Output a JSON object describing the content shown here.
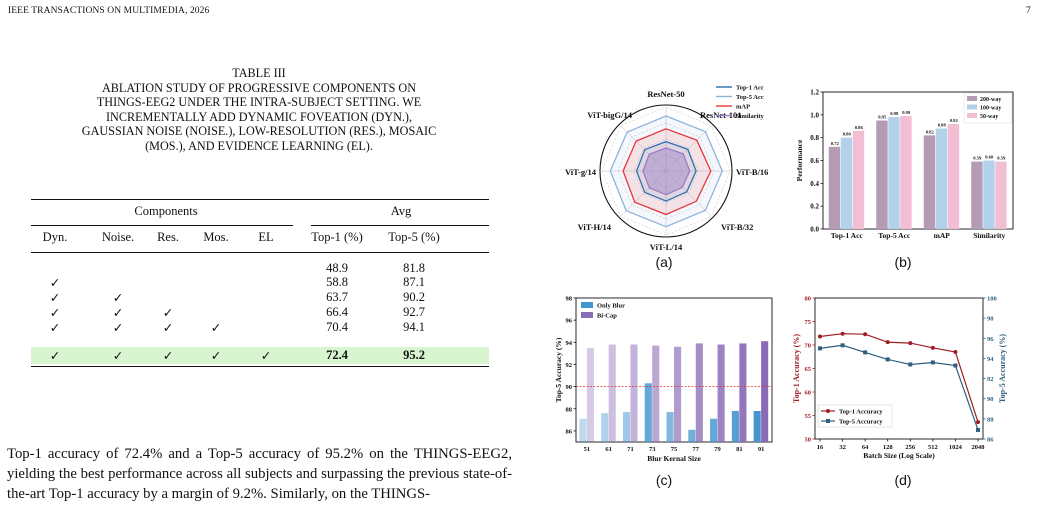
{
  "header": {
    "left": "IEEE TRANSACTIONS ON MULTIMEDIA, 2026",
    "right": "7"
  },
  "table": {
    "caption_label": "TABLE III",
    "caption_lines": [
      "Ablation study of progressive components on",
      "THINGS-EEG2 under the intra-subject setting. We",
      "incrementally add dynamic foveation (Dyn.),",
      "Gaussian noise (Noise.), low-resolution (Res.), mosaic",
      "(Mos.), and evidence learning (EL)."
    ],
    "group_headers": [
      "Components",
      "Avg"
    ],
    "columns": [
      "Dyn.",
      "Noise.",
      "Res.",
      "Mos.",
      "EL",
      "Top-1 (%)",
      "Top-5 (%)"
    ],
    "check_symbol": "✓",
    "rows": [
      {
        "checks": [
          false,
          false,
          false,
          false,
          false
        ],
        "top1": "48.9",
        "top5": "81.8",
        "highlight": false
      },
      {
        "checks": [
          true,
          false,
          false,
          false,
          false
        ],
        "top1": "58.8",
        "top5": "87.1",
        "highlight": false
      },
      {
        "checks": [
          true,
          true,
          false,
          false,
          false
        ],
        "top1": "63.7",
        "top5": "90.2",
        "highlight": false
      },
      {
        "checks": [
          true,
          true,
          true,
          false,
          false
        ],
        "top1": "66.4",
        "top5": "92.7",
        "highlight": false
      },
      {
        "checks": [
          true,
          true,
          true,
          true,
          false
        ],
        "top1": "70.4",
        "top5": "94.1",
        "highlight": false
      },
      {
        "checks": [
          true,
          true,
          true,
          true,
          true
        ],
        "top1": "72.4",
        "top5": "95.2",
        "highlight": true
      }
    ]
  },
  "body_text": "Top-1 accuracy of 72.4% and a Top-5 accuracy of 95.2% on the THINGS-EEG2, yielding the best performance across all subjects and surpassing the previous state-of-the-art Top-1 accuracy by a margin of 9.2%. Similarly, on the THINGS-",
  "colors": {
    "top1_acc": "#2f6fb0",
    "top5_acc": "#8fb4dc",
    "map": "#e8363b",
    "similarity": "#9b7ec8",
    "way200": "#b49cb4",
    "way100": "#b3d1ea",
    "way50": "#f2bed3",
    "only_blur": "#4596cf",
    "bi_cap": "#8a6bb5",
    "top1_line": "#a01e22",
    "top5_line": "#2e5f80",
    "highlight_row": "#d7f5cf"
  },
  "chart_data": [
    {
      "panel": "(a)",
      "type": "radar",
      "axes": [
        "ResNet-50",
        "ResNet-101",
        "ViT-B/16",
        "ViT-B/32",
        "ViT-L/14",
        "ViT-H/14",
        "ViT-g/14",
        "ViT-bigG/14"
      ],
      "series": [
        {
          "name": "Top-1 Acc",
          "values": [
            0.46,
            0.48,
            0.47,
            0.46,
            0.47,
            0.47,
            0.46,
            0.47
          ]
        },
        {
          "name": "Top-5 Acc",
          "values": [
            0.86,
            0.87,
            0.88,
            0.87,
            0.87,
            0.88,
            0.87,
            0.86
          ]
        },
        {
          "name": "mAP",
          "values": [
            0.66,
            0.68,
            0.7,
            0.67,
            0.68,
            0.69,
            0.67,
            0.66
          ]
        },
        {
          "name": "Similarity",
          "values": [
            0.36,
            0.38,
            0.37,
            0.36,
            0.37,
            0.37,
            0.36,
            0.37
          ]
        }
      ],
      "legend_position": "top-right"
    },
    {
      "panel": "(b)",
      "type": "bar",
      "categories": [
        "Top-1 Acc",
        "Top-5 Acc",
        "mAP",
        "Similarity"
      ],
      "series": [
        {
          "name": "200-way",
          "values": [
            0.72,
            0.95,
            0.82,
            0.59
          ]
        },
        {
          "name": "100-way",
          "values": [
            0.8,
            0.98,
            0.88,
            0.6
          ]
        },
        {
          "name": "50-way",
          "values": [
            0.86,
            0.99,
            0.92,
            0.59
          ]
        }
      ],
      "ylabel": "Performance",
      "ylim": [
        0.0,
        1.2
      ],
      "yticks": [
        "0.0",
        "0.2",
        "0.4",
        "0.6",
        "0.8",
        "1.0",
        "1.2"
      ],
      "legend_position": "top-right"
    },
    {
      "panel": "(c)",
      "type": "bar",
      "categories": [
        "51",
        "61",
        "71",
        "73",
        "75",
        "77",
        "79",
        "81",
        "91"
      ],
      "series": [
        {
          "name": "Only Blur",
          "values": [
            87.1,
            87.6,
            87.7,
            90.3,
            87.7,
            86.1,
            87.1,
            87.8,
            87.8
          ]
        },
        {
          "name": "Bi-Cap",
          "values": [
            93.5,
            93.8,
            93.8,
            93.7,
            93.6,
            93.9,
            93.8,
            93.9,
            94.1
          ]
        }
      ],
      "reference_line": 90,
      "xlabel": "Blur Kernal Size",
      "ylabel": "Top-5 Accuracy (%)",
      "ylim": [
        85,
        98
      ],
      "yticks": [
        "86",
        "88",
        "90",
        "92",
        "94",
        "96",
        "98"
      ],
      "legend_position": "top-left"
    },
    {
      "panel": "(d)",
      "type": "line",
      "categories": [
        "16",
        "32",
        "64",
        "128",
        "256",
        "512",
        "1024",
        "2048"
      ],
      "series": [
        {
          "name": "Top-1 Accuracy",
          "axis": "left",
          "values": [
            71.8,
            72.4,
            72.3,
            70.6,
            70.4,
            69.4,
            68.5,
            53.6
          ]
        },
        {
          "name": "Top-5 Accuracy",
          "axis": "right",
          "values": [
            95.0,
            95.3,
            94.6,
            93.9,
            93.4,
            93.6,
            93.3,
            86.9
          ]
        }
      ],
      "xlabel": "Batch Size (Log Scale)",
      "ylabel_left": "Top-1 Accuracy (%)",
      "ylabel_right": "Top-5 Accuracy (%)",
      "ylim_left": [
        50,
        80
      ],
      "ylim_right": [
        86,
        100
      ],
      "yticks_left": [
        "50",
        "55",
        "60",
        "65",
        "70",
        "75",
        "80"
      ],
      "yticks_right": [
        "86",
        "88",
        "90",
        "92",
        "94",
        "96",
        "98",
        "100"
      ],
      "legend_position": "bottom-left"
    }
  ]
}
